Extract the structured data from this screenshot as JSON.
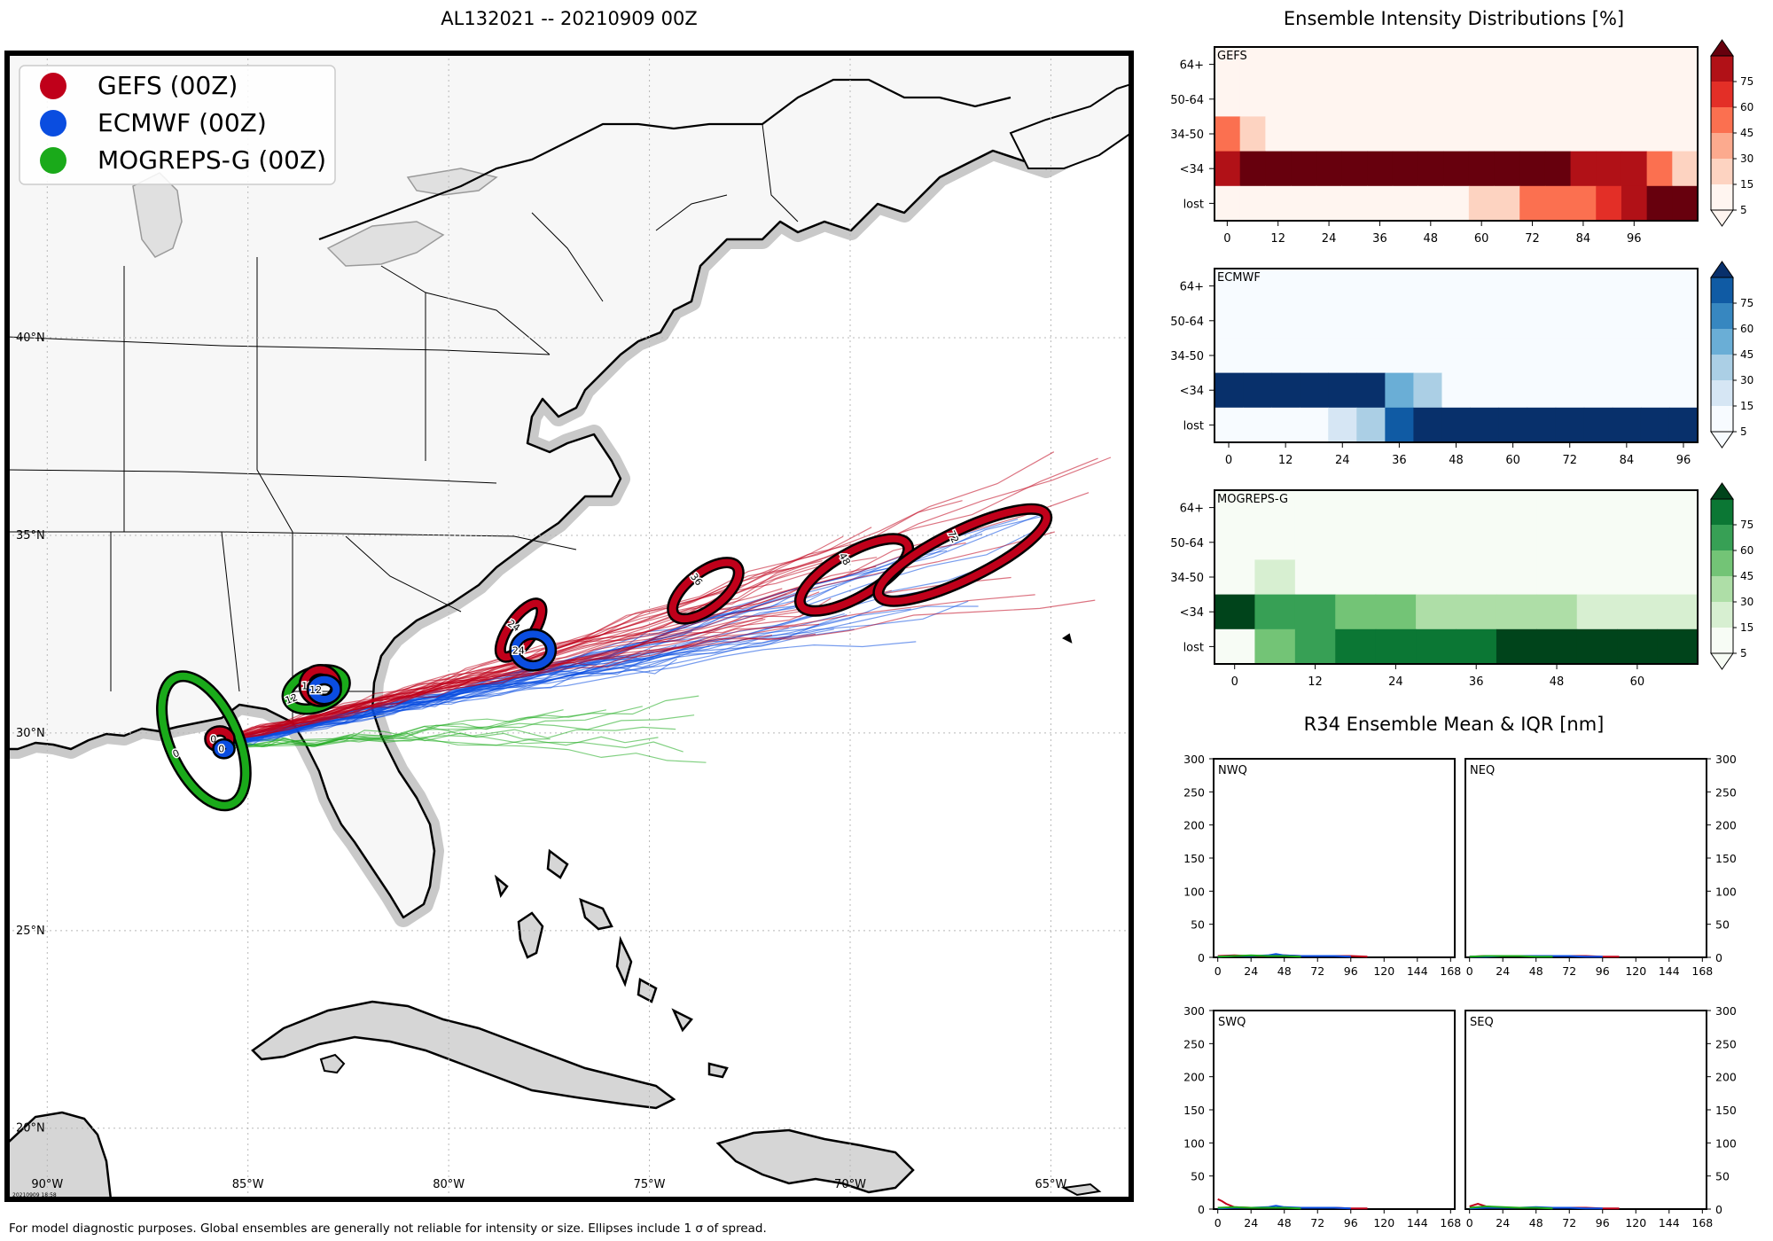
{
  "header": {
    "map_title": "AL132021 -- 20210909 00Z",
    "intensity_title": "Ensemble Intensity Distributions [%]",
    "r34_title": "R34 Ensemble Mean & IQR [nm]"
  },
  "footer": {
    "note": "For model diagnostic purposes. Global ensembles are generally not reliable for intensity or size. Ellipses include 1 σ of spread.",
    "stamp": "20210909 18:58"
  },
  "colors": {
    "gefs": "#c0001a",
    "ecmwf": "#0a4de0",
    "mogreps": "#1aaa1a",
    "land": "#f7f7f7",
    "coast_halo": "#cfcfcf"
  },
  "chart_data": [
    {
      "type": "map",
      "id": "track_map",
      "title": "AL132021 -- 20210909 00Z",
      "lat_range": [
        18.2,
        47.2
      ],
      "lon_range": [
        -91.0,
        -63.0
      ],
      "lat_ticks": [
        20,
        25,
        30,
        35,
        40
      ],
      "lon_ticks": [
        -90,
        -85,
        -80,
        -75,
        -70,
        -65
      ],
      "lat_tick_labels": [
        "20°N",
        "25°N",
        "30°N",
        "35°N",
        "40°N"
      ],
      "lon_tick_labels": [
        "90°W",
        "85°W",
        "80°W",
        "75°W",
        "70°W",
        "65°W"
      ],
      "legend": [
        {
          "label": "GEFS (00Z)",
          "color": "#c0001a"
        },
        {
          "label": "ECMWF (00Z)",
          "color": "#0a4de0"
        },
        {
          "label": "MOGREPS-G (00Z)",
          "color": "#1aaa1a"
        }
      ],
      "ellipses": [
        {
          "model": "MOGREPS-G",
          "hour": "0",
          "lon": -86.1,
          "lat": 29.8,
          "rx_deg": 0.85,
          "ry_deg": 1.75,
          "angle": -24,
          "color": "#1aaa1a"
        },
        {
          "model": "GEFS",
          "hour": "0",
          "lon": -85.7,
          "lat": 29.85,
          "rx_deg": 0.25,
          "ry_deg": 0.2,
          "angle": 0,
          "color": "#c0001a"
        },
        {
          "model": "ECMWF",
          "hour": "0",
          "lon": -85.6,
          "lat": 29.6,
          "rx_deg": 0.15,
          "ry_deg": 0.12,
          "angle": 0,
          "color": "#0a4de0"
        },
        {
          "model": "MOGREPS-G",
          "hour": "12",
          "lon": -83.3,
          "lat": 31.1,
          "rx_deg": 0.75,
          "ry_deg": 0.45,
          "angle": -20,
          "color": "#1aaa1a"
        },
        {
          "model": "GEFS",
          "hour": "12",
          "lon": -83.2,
          "lat": 31.2,
          "rx_deg": 0.4,
          "ry_deg": 0.4,
          "angle": 0,
          "color": "#c0001a"
        },
        {
          "model": "ECMWF",
          "hour": "12",
          "lon": -83.1,
          "lat": 31.1,
          "rx_deg": 0.3,
          "ry_deg": 0.25,
          "angle": 0,
          "color": "#0a4de0"
        },
        {
          "model": "GEFS",
          "hour": "24",
          "lon": -78.2,
          "lat": 32.6,
          "rx_deg": 0.3,
          "ry_deg": 0.8,
          "angle": 35,
          "color": "#c0001a"
        },
        {
          "model": "ECMWF",
          "hour": "24",
          "lon": -77.9,
          "lat": 32.1,
          "rx_deg": 0.45,
          "ry_deg": 0.4,
          "angle": 0,
          "color": "#0a4de0"
        },
        {
          "model": "GEFS",
          "hour": "36",
          "lon": -73.6,
          "lat": 33.6,
          "rx_deg": 0.45,
          "ry_deg": 1.0,
          "angle": 52,
          "color": "#c0001a"
        },
        {
          "model": "GEFS",
          "hour": "48",
          "lon": -69.9,
          "lat": 34.0,
          "rx_deg": 0.55,
          "ry_deg": 1.55,
          "angle": 60,
          "color": "#c0001a"
        },
        {
          "model": "GEFS",
          "hour": "72",
          "lon": -67.2,
          "lat": 34.5,
          "rx_deg": 0.6,
          "ry_deg": 2.35,
          "angle": 64,
          "color": "#c0001a"
        }
      ]
    },
    {
      "type": "heatmap",
      "id": "gefs_intensity",
      "title": "GEFS",
      "rows": [
        "64+",
        "50-64",
        "34-50",
        "<34",
        "lost"
      ],
      "x_ticks": [
        0,
        12,
        24,
        36,
        48,
        60,
        72,
        84,
        96
      ],
      "hours": [
        0,
        6,
        12,
        18,
        24,
        30,
        36,
        42,
        48,
        54,
        60,
        66,
        72,
        78,
        84,
        90,
        96,
        102,
        108
      ],
      "values": [
        [
          0,
          0,
          0,
          0,
          0,
          0,
          0,
          0,
          0,
          0,
          0,
          0,
          0,
          0,
          0,
          0,
          0,
          0,
          0
        ],
        [
          0,
          0,
          0,
          0,
          0,
          0,
          0,
          0,
          0,
          0,
          0,
          0,
          0,
          0,
          0,
          0,
          0,
          0,
          0
        ],
        [
          30,
          12,
          0,
          0,
          0,
          0,
          0,
          0,
          0,
          0,
          0,
          0,
          0,
          0,
          0,
          0,
          0,
          0,
          0
        ],
        [
          65,
          80,
          80,
          80,
          80,
          80,
          80,
          80,
          80,
          80,
          80,
          80,
          80,
          80,
          70,
          62,
          60,
          35,
          12
        ],
        [
          0,
          0,
          0,
          0,
          0,
          0,
          0,
          0,
          0,
          0,
          12,
          12,
          30,
          30,
          30,
          45,
          62,
          78,
          80
        ]
      ],
      "colorbar_ticks": [
        5,
        15,
        30,
        45,
        60,
        75
      ],
      "palette": [
        "#fff5f0",
        "#fdd3c1",
        "#fcaa8e",
        "#fb7050",
        "#e32f27",
        "#b11117",
        "#67000d"
      ]
    },
    {
      "type": "heatmap",
      "id": "ecmwf_intensity",
      "title": "ECMWF",
      "rows": [
        "64+",
        "50-64",
        "34-50",
        "<34",
        "lost"
      ],
      "x_ticks": [
        0,
        12,
        24,
        36,
        48,
        60,
        72,
        84,
        96
      ],
      "hours": [
        0,
        6,
        12,
        18,
        24,
        30,
        36,
        42,
        48,
        54,
        60,
        66,
        72,
        78,
        84,
        90,
        96
      ],
      "values": [
        [
          0,
          0,
          0,
          0,
          0,
          0,
          0,
          0,
          0,
          0,
          0,
          0,
          0,
          0,
          0,
          0,
          0
        ],
        [
          0,
          0,
          0,
          0,
          0,
          0,
          0,
          0,
          0,
          0,
          0,
          0,
          0,
          0,
          0,
          0,
          0
        ],
        [
          0,
          0,
          0,
          0,
          0,
          0,
          0,
          0,
          0,
          0,
          0,
          0,
          0,
          0,
          0,
          0,
          0
        ],
        [
          80,
          80,
          80,
          80,
          80,
          80,
          35,
          20,
          0,
          0,
          0,
          0,
          0,
          0,
          0,
          0,
          0
        ],
        [
          0,
          0,
          0,
          0,
          8,
          20,
          60,
          80,
          80,
          80,
          80,
          80,
          80,
          80,
          80,
          80,
          80
        ]
      ],
      "colorbar_ticks": [
        5,
        15,
        30,
        45,
        60,
        75
      ],
      "palette": [
        "#f7fbff",
        "#d6e6f4",
        "#abcfe5",
        "#6aaed6",
        "#3787c0",
        "#105ba4",
        "#08306b"
      ]
    },
    {
      "type": "heatmap",
      "id": "mogreps_intensity",
      "title": "MOGREPS-G",
      "rows": [
        "64+",
        "50-64",
        "34-50",
        "<34",
        "lost"
      ],
      "x_ticks": [
        0,
        12,
        24,
        36,
        48,
        60
      ],
      "hours": [
        0,
        6,
        12,
        18,
        24,
        30,
        36,
        42,
        48,
        54,
        60,
        66
      ],
      "values": [
        [
          0,
          0,
          0,
          0,
          0,
          0,
          0,
          0,
          0,
          0,
          0,
          0
        ],
        [
          0,
          0,
          0,
          0,
          0,
          0,
          0,
          0,
          0,
          0,
          0,
          0
        ],
        [
          0,
          12,
          0,
          0,
          0,
          0,
          0,
          0,
          0,
          0,
          0,
          0
        ],
        [
          80,
          55,
          55,
          40,
          40,
          25,
          25,
          25,
          25,
          12,
          12,
          12
        ],
        [
          0,
          40,
          55,
          65,
          65,
          65,
          65,
          80,
          80,
          80,
          80,
          80
        ]
      ],
      "colorbar_ticks": [
        5,
        15,
        30,
        45,
        60,
        75
      ],
      "palette": [
        "#f7fcf5",
        "#d7efd1",
        "#aedea7",
        "#73c476",
        "#37a055",
        "#0b7734",
        "#00441b"
      ]
    },
    {
      "type": "line",
      "id": "r34_nwq",
      "title": "NWQ",
      "xlim": [
        -3,
        171
      ],
      "ylim": [
        0,
        300
      ],
      "x_ticks": [
        0,
        24,
        48,
        72,
        96,
        120,
        144,
        168
      ],
      "y_ticks": [
        0,
        50,
        100,
        150,
        200,
        250,
        300
      ],
      "series": [
        {
          "name": "GEFS",
          "color": "#c0001a",
          "x": [
            0,
            12,
            24,
            36,
            48,
            60,
            72,
            84,
            96,
            108
          ],
          "values": [
            2,
            3,
            2,
            2,
            3,
            2,
            2,
            2,
            2,
            1
          ]
        },
        {
          "name": "ECMWF",
          "color": "#0a4de0",
          "x": [
            0,
            12,
            24,
            36,
            42,
            48,
            60,
            72,
            84,
            96
          ],
          "values": [
            1,
            2,
            2,
            3,
            5,
            3,
            2,
            2,
            2,
            1
          ]
        },
        {
          "name": "MOGREPS-G",
          "color": "#1aaa1a",
          "x": [
            0,
            12,
            24,
            36,
            48,
            60
          ],
          "values": [
            1,
            2,
            3,
            2,
            2,
            1
          ]
        }
      ]
    },
    {
      "type": "line",
      "id": "r34_neq",
      "title": "NEQ",
      "xlim": [
        -3,
        171
      ],
      "ylim": [
        0,
        300
      ],
      "x_ticks": [
        0,
        24,
        48,
        72,
        96,
        120,
        144,
        168
      ],
      "y_ticks": [
        0,
        50,
        100,
        150,
        200,
        250,
        300
      ],
      "series": [
        {
          "name": "GEFS",
          "color": "#c0001a",
          "x": [
            0,
            12,
            24,
            36,
            48,
            60,
            72,
            84,
            96,
            108
          ],
          "values": [
            1,
            2,
            2,
            2,
            2,
            2,
            2,
            2,
            1,
            1
          ]
        },
        {
          "name": "ECMWF",
          "color": "#0a4de0",
          "x": [
            0,
            12,
            24,
            36,
            48,
            60,
            72,
            84,
            96
          ],
          "values": [
            1,
            1,
            2,
            2,
            2,
            2,
            2,
            1,
            1
          ]
        },
        {
          "name": "MOGREPS-G",
          "color": "#1aaa1a",
          "x": [
            0,
            12,
            24,
            36,
            48,
            60
          ],
          "values": [
            1,
            2,
            2,
            2,
            1,
            1
          ]
        }
      ]
    },
    {
      "type": "line",
      "id": "r34_swq",
      "title": "SWQ",
      "xlim": [
        -3,
        171
      ],
      "ylim": [
        0,
        300
      ],
      "x_ticks": [
        0,
        24,
        48,
        72,
        96,
        120,
        144,
        168
      ],
      "y_ticks": [
        0,
        50,
        100,
        150,
        200,
        250,
        300
      ],
      "series": [
        {
          "name": "GEFS",
          "color": "#c0001a",
          "x": [
            0,
            3,
            6,
            12,
            24,
            36,
            48,
            60,
            72,
            84,
            96,
            108
          ],
          "values": [
            15,
            12,
            8,
            3,
            2,
            2,
            2,
            2,
            2,
            2,
            1,
            1
          ]
        },
        {
          "name": "ECMWF",
          "color": "#0a4de0",
          "x": [
            0,
            12,
            24,
            36,
            42,
            48,
            60,
            72,
            84,
            96
          ],
          "values": [
            1,
            2,
            2,
            3,
            5,
            3,
            2,
            2,
            2,
            1
          ]
        },
        {
          "name": "MOGREPS-G",
          "color": "#1aaa1a",
          "x": [
            0,
            12,
            24,
            36,
            48,
            60
          ],
          "values": [
            2,
            3,
            2,
            2,
            2,
            1
          ]
        }
      ]
    },
    {
      "type": "line",
      "id": "r34_seq",
      "title": "SEQ",
      "xlim": [
        -3,
        171
      ],
      "ylim": [
        0,
        300
      ],
      "x_ticks": [
        0,
        24,
        48,
        72,
        96,
        120,
        144,
        168
      ],
      "y_ticks": [
        0,
        50,
        100,
        150,
        200,
        250,
        300
      ],
      "series": [
        {
          "name": "GEFS",
          "color": "#c0001a",
          "x": [
            0,
            6,
            12,
            24,
            36,
            48,
            60,
            72,
            84,
            96,
            108
          ],
          "values": [
            4,
            8,
            4,
            2,
            2,
            2,
            2,
            2,
            2,
            1,
            1
          ]
        },
        {
          "name": "ECMWF",
          "color": "#0a4de0",
          "x": [
            0,
            12,
            24,
            36,
            48,
            60,
            72,
            84,
            96
          ],
          "values": [
            1,
            2,
            2,
            2,
            3,
            2,
            2,
            1,
            1
          ]
        },
        {
          "name": "MOGREPS-G",
          "color": "#1aaa1a",
          "x": [
            0,
            12,
            24,
            36,
            48,
            60
          ],
          "values": [
            2,
            4,
            3,
            2,
            2,
            1
          ]
        }
      ]
    }
  ]
}
